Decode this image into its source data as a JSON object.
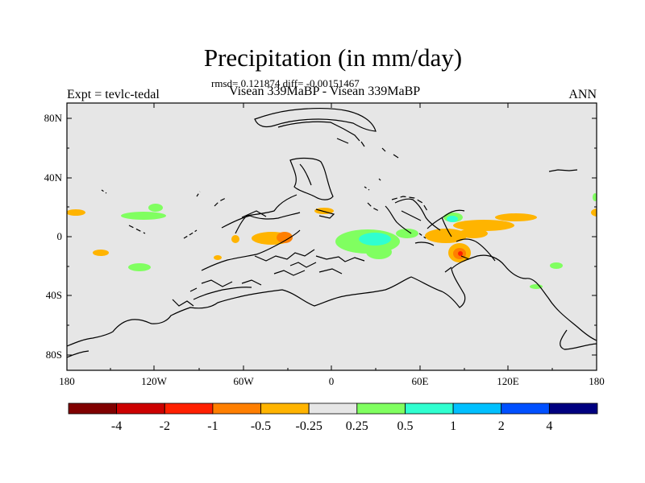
{
  "figure": {
    "title": "Precipitation (in mm/day)",
    "stats": "rmsd= 0.121874 diff= -0.00151467",
    "subtitle": "Visean 339MaBP - Visean 339MaBP",
    "left_label": "Expt = tevlc-tedal",
    "right_label": "ANN"
  },
  "axes": {
    "lat_ticks": [
      "80N",
      "40N",
      "0",
      "40S",
      "80S"
    ],
    "lon_ticks": [
      "180",
      "120W",
      "60W",
      "0",
      "60E",
      "120E",
      "180"
    ]
  },
  "colorbar": {
    "colors": [
      "#800000",
      "#cc0000",
      "#ff2000",
      "#ff7f00",
      "#ffb400",
      "#e6e6e6",
      "#80ff60",
      "#30ffd0",
      "#00c0ff",
      "#0050ff",
      "#000080"
    ],
    "labels": [
      "-4",
      "-2",
      "-1",
      "-0.5",
      "-0.25",
      "0.25",
      "0.5",
      "1",
      "2",
      "4"
    ]
  },
  "chart_data": {
    "type": "map",
    "title": "Precipitation (in mm/day)",
    "variable": "precipitation difference (mm/day)",
    "lat_range": [
      -90,
      90
    ],
    "lon_range": [
      -180,
      180
    ],
    "levels": [
      -4,
      -2,
      -1,
      -0.5,
      -0.25,
      0.25,
      0.5,
      1,
      2,
      4
    ],
    "rmsd": 0.121874,
    "diff": -0.00151467
  }
}
